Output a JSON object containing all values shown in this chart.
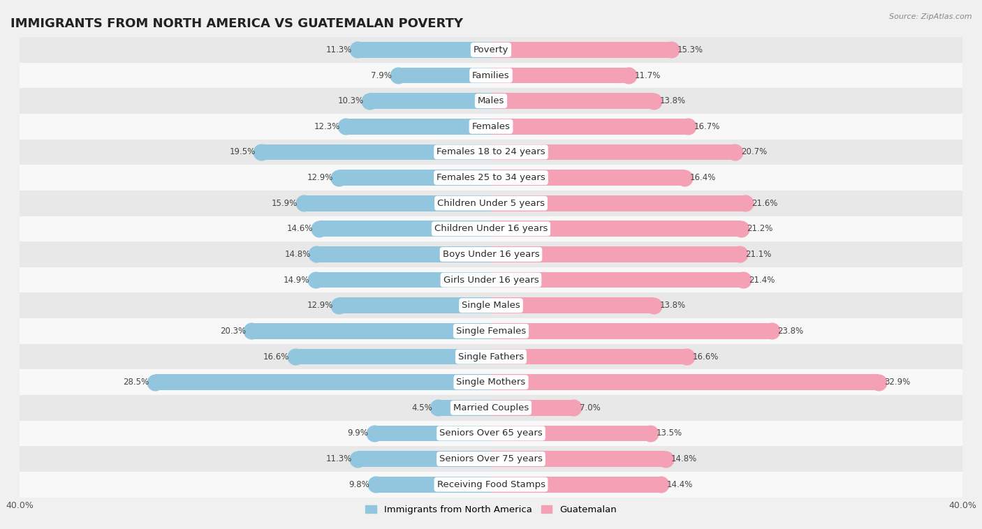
{
  "title": "IMMIGRANTS FROM NORTH AMERICA VS GUATEMALAN POVERTY",
  "source": "Source: ZipAtlas.com",
  "categories": [
    "Poverty",
    "Families",
    "Males",
    "Females",
    "Females 18 to 24 years",
    "Females 25 to 34 years",
    "Children Under 5 years",
    "Children Under 16 years",
    "Boys Under 16 years",
    "Girls Under 16 years",
    "Single Males",
    "Single Females",
    "Single Fathers",
    "Single Mothers",
    "Married Couples",
    "Seniors Over 65 years",
    "Seniors Over 75 years",
    "Receiving Food Stamps"
  ],
  "left_values": [
    11.3,
    7.9,
    10.3,
    12.3,
    19.5,
    12.9,
    15.9,
    14.6,
    14.8,
    14.9,
    12.9,
    20.3,
    16.6,
    28.5,
    4.5,
    9.9,
    11.3,
    9.8
  ],
  "right_values": [
    15.3,
    11.7,
    13.8,
    16.7,
    20.7,
    16.4,
    21.6,
    21.2,
    21.1,
    21.4,
    13.8,
    23.8,
    16.6,
    32.9,
    7.0,
    13.5,
    14.8,
    14.4
  ],
  "left_color": "#92c5de",
  "right_color": "#f4a0b5",
  "left_label": "Immigrants from North America",
  "right_label": "Guatemalan",
  "xlim": 40.0,
  "bar_height": 0.62,
  "bg_color": "#f0f0f0",
  "row_colors": [
    "#e8e8e8",
    "#f8f8f8"
  ],
  "title_fontsize": 13,
  "label_fontsize": 9.5,
  "value_fontsize": 8.5,
  "axis_label_fontsize": 9
}
